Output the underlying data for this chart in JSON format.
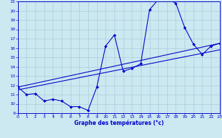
{
  "xlabel": "Graphe des températures (°c)",
  "bg_color": "#cce8f0",
  "line_color": "#0000cc",
  "xlim": [
    0,
    23
  ],
  "ylim": [
    9,
    21
  ],
  "xticks": [
    0,
    1,
    2,
    3,
    4,
    5,
    6,
    7,
    8,
    9,
    10,
    11,
    12,
    13,
    14,
    15,
    16,
    17,
    18,
    19,
    20,
    21,
    22,
    23
  ],
  "yticks": [
    9,
    10,
    11,
    12,
    13,
    14,
    15,
    16,
    17,
    18,
    19,
    20,
    21
  ],
  "temp_curve": {
    "x": [
      0,
      1,
      2,
      3,
      4,
      5,
      6,
      7,
      8,
      9,
      10,
      11,
      12,
      13,
      14,
      15,
      16,
      17,
      18,
      19,
      20,
      21,
      22,
      23
    ],
    "y": [
      11.8,
      11.0,
      11.1,
      10.3,
      10.5,
      10.3,
      9.7,
      9.7,
      9.3,
      11.8,
      16.2,
      17.4,
      13.5,
      13.8,
      14.3,
      20.1,
      21.2,
      21.3,
      20.8,
      18.2,
      16.4,
      15.3,
      16.2,
      16.5
    ]
  },
  "trend_line1": {
    "x": [
      0,
      23
    ],
    "y": [
      11.8,
      16.5
    ]
  },
  "trend_line2": {
    "x": [
      0,
      23
    ],
    "y": [
      11.5,
      15.8
    ]
  },
  "grid_color": "#aaccdd",
  "grid_linewidth": 0.5
}
